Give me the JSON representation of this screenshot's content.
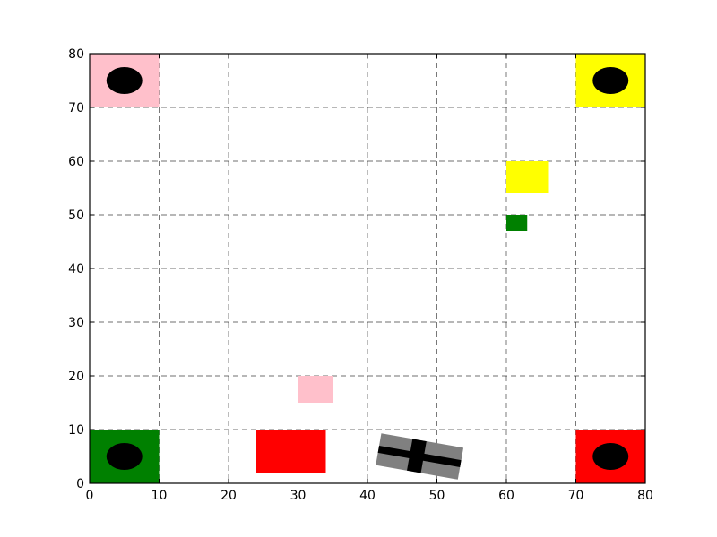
{
  "chart_data": {
    "type": "scatter",
    "title": "",
    "xlabel": "",
    "ylabel": "",
    "xlim": [
      0,
      80
    ],
    "ylim": [
      0,
      80
    ],
    "grid": true,
    "x_ticks": [
      0,
      10,
      20,
      30,
      40,
      50,
      60,
      70,
      80
    ],
    "y_ticks": [
      0,
      10,
      20,
      30,
      40,
      50,
      60,
      70,
      80
    ],
    "corner_zones": [
      {
        "id": "pink",
        "color": "#ffc0cb",
        "x": [
          0,
          10
        ],
        "y": [
          70,
          80
        ],
        "marker": [
          5,
          75
        ]
      },
      {
        "id": "yellow",
        "color": "#ffff00",
        "x": [
          70,
          80
        ],
        "y": [
          70,
          80
        ],
        "marker": [
          75,
          75
        ]
      },
      {
        "id": "green",
        "color": "#008000",
        "x": [
          0,
          10
        ],
        "y": [
          0,
          10
        ],
        "marker": [
          5,
          5
        ]
      },
      {
        "id": "red",
        "color": "#ff0000",
        "x": [
          70,
          80
        ],
        "y": [
          0,
          10
        ],
        "marker": [
          75,
          5
        ]
      }
    ],
    "blocks": [
      {
        "id": "yellow",
        "color": "#ffff00",
        "x": [
          60,
          66
        ],
        "y": [
          54,
          60
        ]
      },
      {
        "id": "green",
        "color": "#008000",
        "x": [
          60,
          63
        ],
        "y": [
          47,
          50
        ]
      },
      {
        "id": "pink",
        "color": "#ffc0cb",
        "x": [
          30,
          35
        ],
        "y": [
          15,
          20
        ]
      },
      {
        "id": "red",
        "color": "#ff0000",
        "x": [
          24,
          34
        ],
        "y": [
          2,
          10
        ]
      }
    ],
    "agent": {
      "color": "#808080",
      "center": [
        47.5,
        5
      ],
      "length": 12,
      "width": 6,
      "heading_deg": -10
    }
  }
}
